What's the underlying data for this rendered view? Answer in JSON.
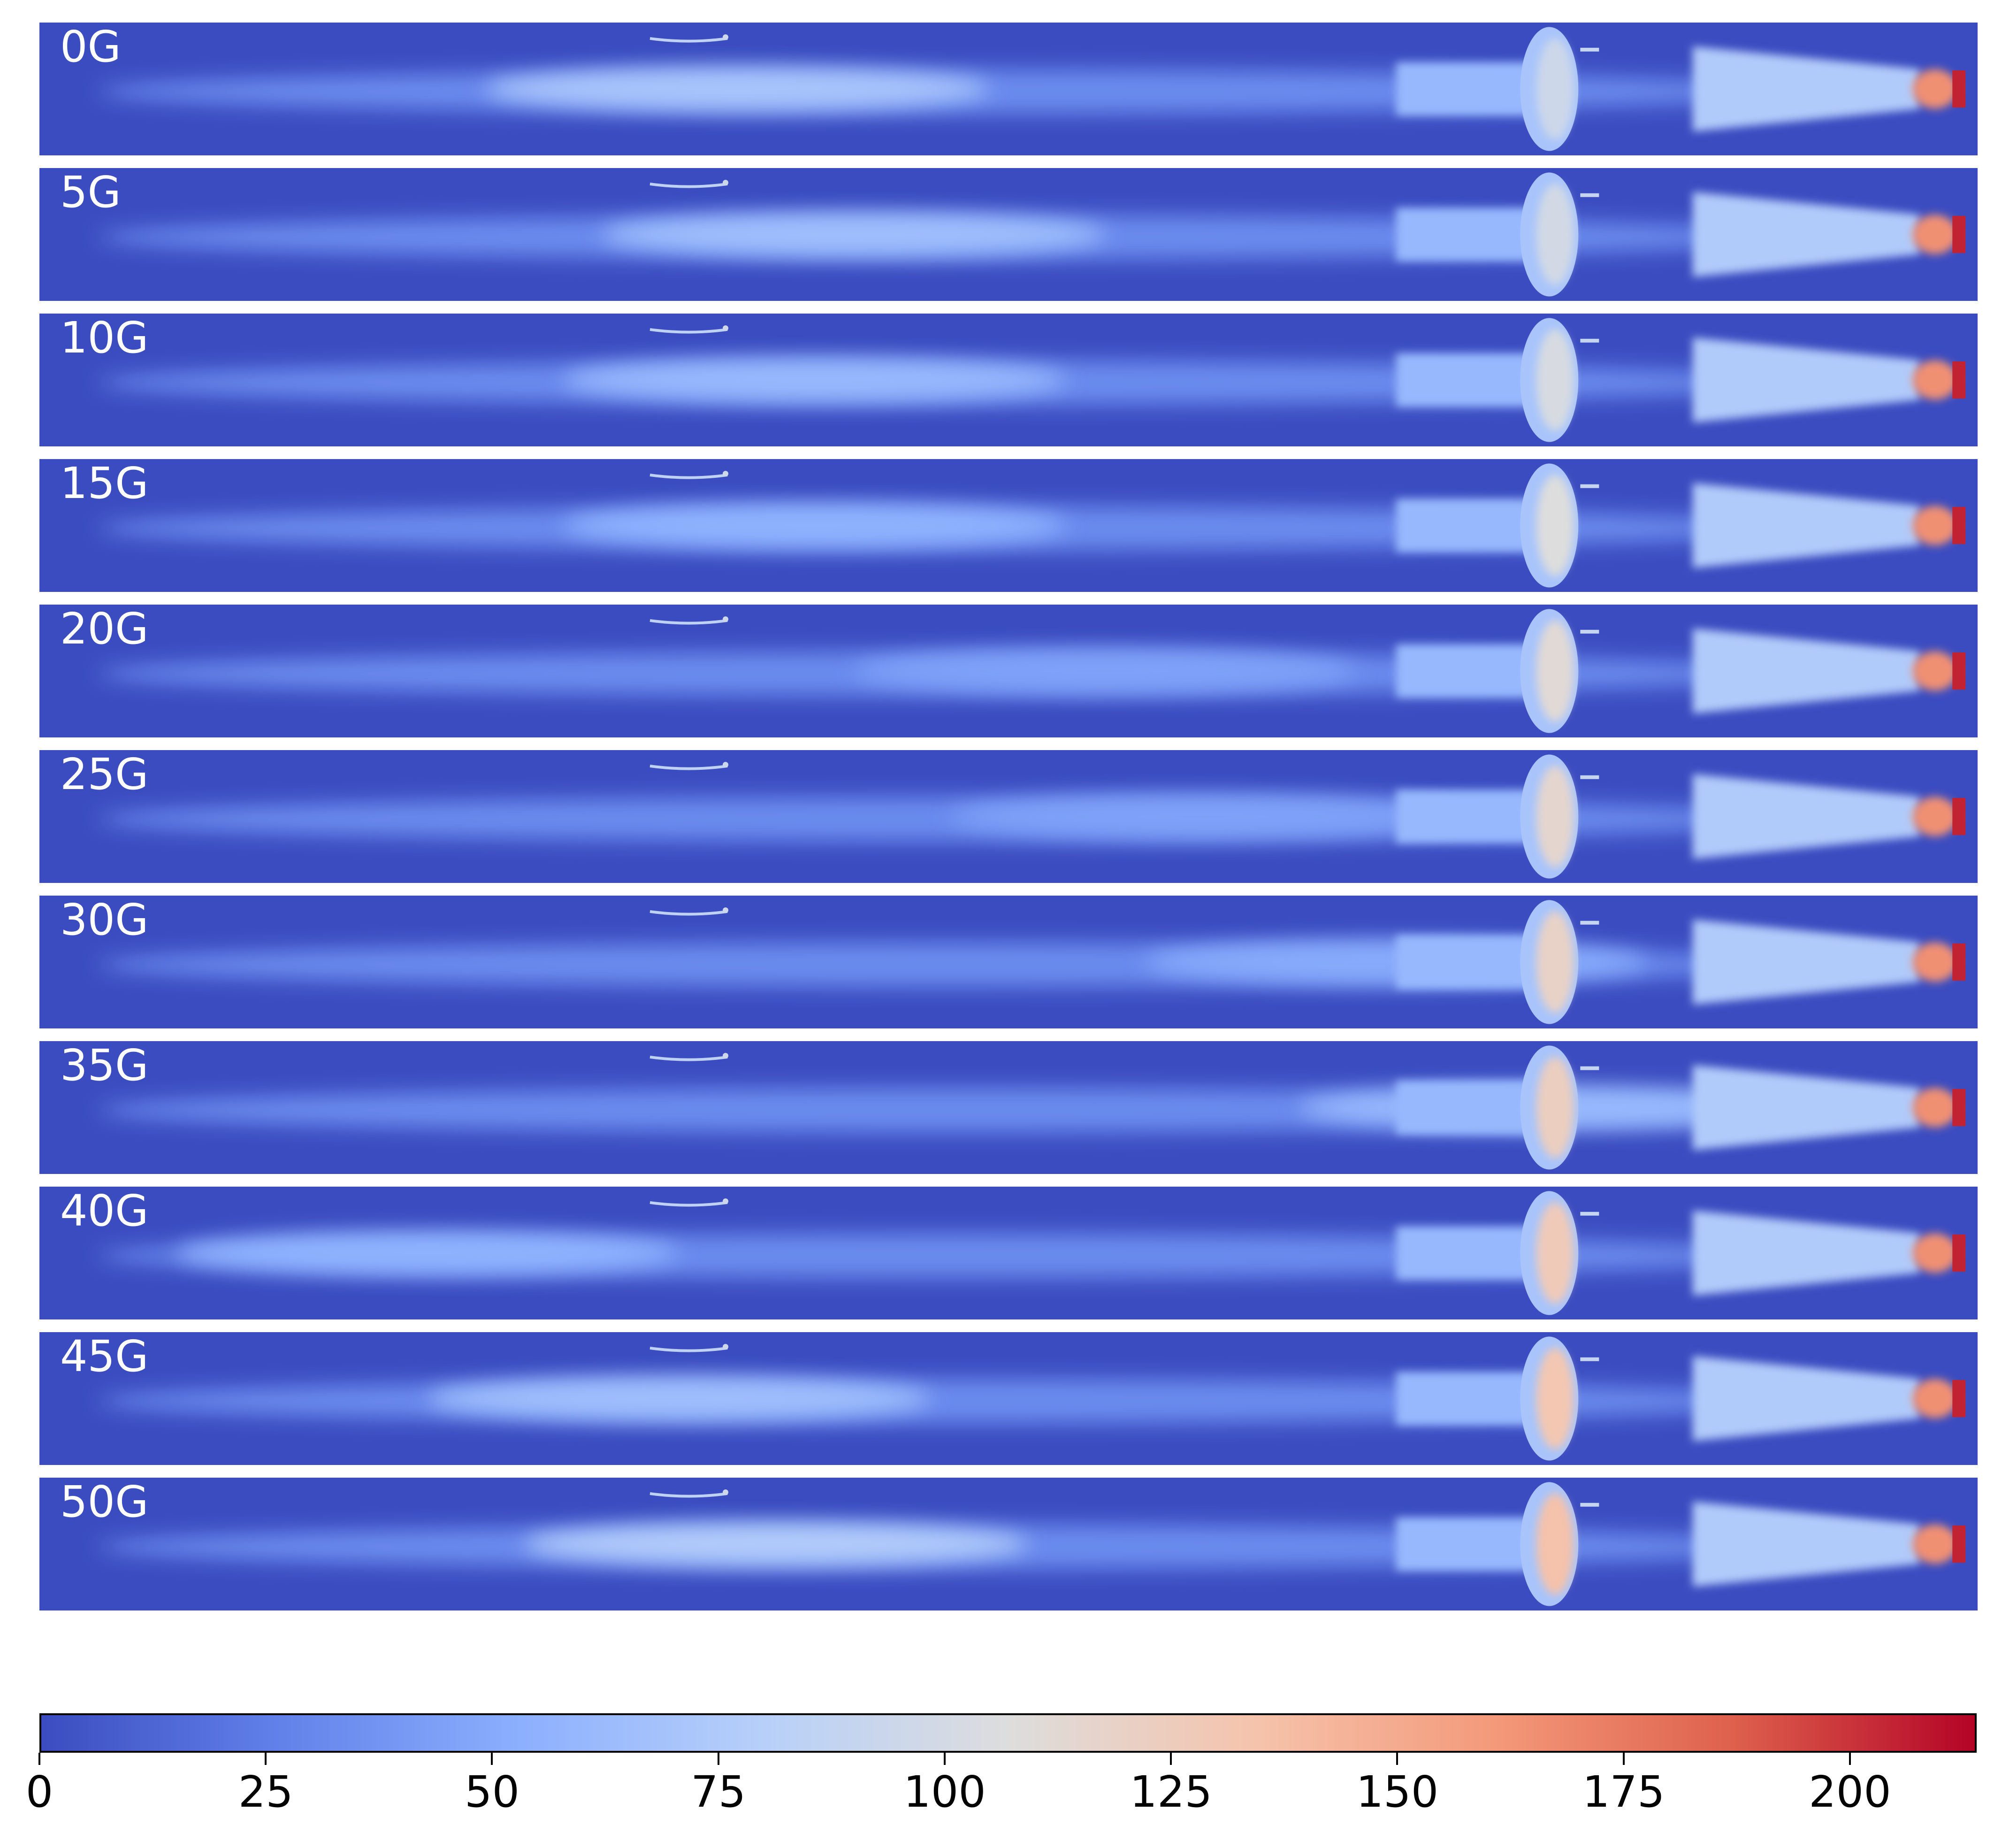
{
  "chart_data": {
    "type": "heatmap",
    "colormap": "coolwarm",
    "background_color": "#3b4cc0",
    "panels": [
      {
        "label": "0G",
        "glow_center_x": 0.36,
        "glow_value": 70
      },
      {
        "label": "5G",
        "glow_center_x": 0.42,
        "glow_value": 65
      },
      {
        "label": "10G",
        "glow_center_x": 0.4,
        "glow_value": 60
      },
      {
        "label": "15G",
        "glow_center_x": 0.4,
        "glow_value": 55
      },
      {
        "label": "20G",
        "glow_center_x": 0.55,
        "glow_value": 45
      },
      {
        "label": "25G",
        "glow_center_x": 0.6,
        "glow_value": 45
      },
      {
        "label": "30G",
        "glow_center_x": 0.7,
        "glow_value": 50
      },
      {
        "label": "35G",
        "glow_center_x": 0.78,
        "glow_value": 60
      },
      {
        "label": "40G",
        "glow_center_x": 0.2,
        "glow_value": 55
      },
      {
        "label": "45G",
        "glow_center_x": 0.33,
        "glow_value": 65
      },
      {
        "label": "50G",
        "glow_center_x": 0.38,
        "glow_value": 75
      }
    ],
    "colorbar": {
      "min": 0,
      "max": 214,
      "ticks": [
        0,
        25,
        50,
        75,
        100,
        125,
        150,
        175,
        200
      ],
      "tick_labels": [
        "0",
        "25",
        "50",
        "75",
        "100",
        "125",
        "150",
        "175",
        "200"
      ]
    }
  }
}
